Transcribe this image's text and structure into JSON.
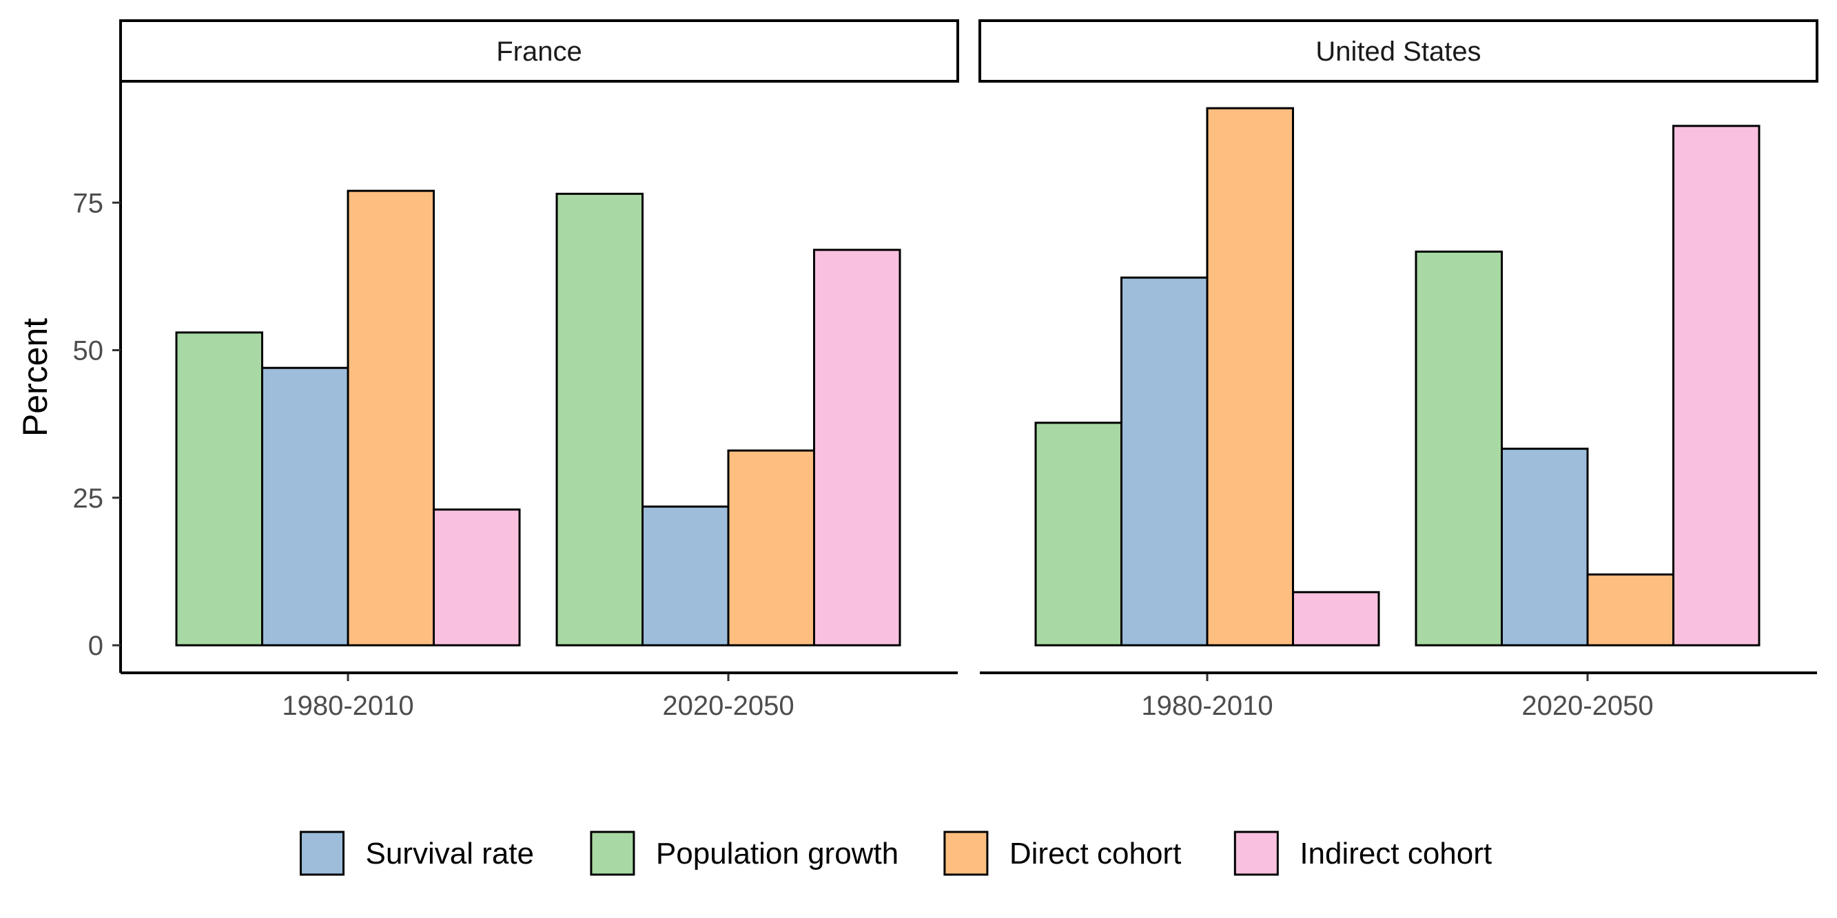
{
  "chart_data": {
    "type": "bar",
    "ylabel": "Percent",
    "yticks": [
      0,
      25,
      50,
      75
    ],
    "ylim": [
      0,
      95
    ],
    "categories": [
      "1980-2010",
      "2020-2050"
    ],
    "legend": {
      "position": "bottom",
      "order": [
        "Survival rate",
        "Population growth",
        "Direct cohort",
        "Indirect cohort"
      ]
    },
    "colors": {
      "Population growth": "#a8d8a3",
      "Survival rate": "#9dbdda",
      "Direct cohort": "#fdbe80",
      "Indirect cohort": "#f9c0df"
    },
    "series_order_in_group": [
      "Population growth",
      "Survival rate",
      "Direct cohort",
      "Indirect cohort"
    ],
    "panels": [
      {
        "title": "France",
        "series": [
          {
            "name": "Population growth",
            "values": [
              53,
              76.5
            ]
          },
          {
            "name": "Survival rate",
            "values": [
              47,
              23.5
            ]
          },
          {
            "name": "Direct cohort",
            "values": [
              77,
              33
            ]
          },
          {
            "name": "Indirect cohort",
            "values": [
              23,
              67
            ]
          }
        ]
      },
      {
        "title": "United States",
        "series": [
          {
            "name": "Population growth",
            "values": [
              37.7,
              66.7
            ]
          },
          {
            "name": "Survival rate",
            "values": [
              62.3,
              33.3
            ]
          },
          {
            "name": "Direct cohort",
            "values": [
              91,
              12
            ]
          },
          {
            "name": "Indirect cohort",
            "values": [
              9,
              88
            ]
          }
        ]
      }
    ]
  }
}
